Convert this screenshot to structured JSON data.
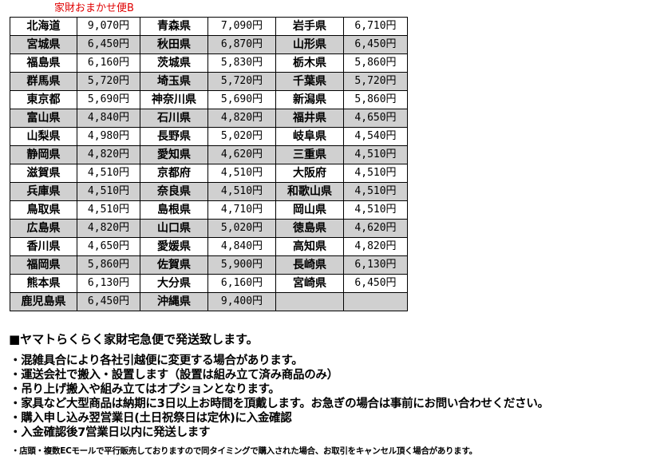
{
  "title": "家財おまかせ便B",
  "colors": {
    "title": "#e00000",
    "row_shade": "#d0d0d0"
  },
  "rows": [
    [
      [
        "北海道",
        "9,070円"
      ],
      [
        "青森県",
        "7,090円"
      ],
      [
        "岩手県",
        "6,710円"
      ]
    ],
    [
      [
        "宮城県",
        "6,450円"
      ],
      [
        "秋田県",
        "6,870円"
      ],
      [
        "山形県",
        "6,450円"
      ]
    ],
    [
      [
        "福島県",
        "6,160円"
      ],
      [
        "茨城県",
        "5,830円"
      ],
      [
        "栃木県",
        "5,860円"
      ]
    ],
    [
      [
        "群馬県",
        "5,720円"
      ],
      [
        "埼玉県",
        "5,720円"
      ],
      [
        "千葉県",
        "5,720円"
      ]
    ],
    [
      [
        "東京都",
        "5,690円"
      ],
      [
        "神奈川県",
        "5,690円"
      ],
      [
        "新潟県",
        "5,860円"
      ]
    ],
    [
      [
        "富山県",
        "4,840円"
      ],
      [
        "石川県",
        "4,820円"
      ],
      [
        "福井県",
        "4,650円"
      ]
    ],
    [
      [
        "山梨県",
        "4,980円"
      ],
      [
        "長野県",
        "5,020円"
      ],
      [
        "岐阜県",
        "4,540円"
      ]
    ],
    [
      [
        "静岡県",
        "4,820円"
      ],
      [
        "愛知県",
        "4,620円"
      ],
      [
        "三重県",
        "4,510円"
      ]
    ],
    [
      [
        "滋賀県",
        "4,510円"
      ],
      [
        "京都府",
        "4,510円"
      ],
      [
        "大阪府",
        "4,510円"
      ]
    ],
    [
      [
        "兵庫県",
        "4,510円"
      ],
      [
        "奈良県",
        "4,510円"
      ],
      [
        "和歌山県",
        "4,510円"
      ]
    ],
    [
      [
        "鳥取県",
        "4,510円"
      ],
      [
        "島根県",
        "4,710円"
      ],
      [
        "岡山県",
        "4,510円"
      ]
    ],
    [
      [
        "広島県",
        "4,820円"
      ],
      [
        "山口県",
        "5,020円"
      ],
      [
        "徳島県",
        "4,620円"
      ]
    ],
    [
      [
        "香川県",
        "4,650円"
      ],
      [
        "愛媛県",
        "4,840円"
      ],
      [
        "高知県",
        "4,820円"
      ]
    ],
    [
      [
        "福岡県",
        "5,860円"
      ],
      [
        "佐賀県",
        "5,900円"
      ],
      [
        "長崎県",
        "6,130円"
      ]
    ],
    [
      [
        "熊本県",
        "6,130円"
      ],
      [
        "大分県",
        "6,160円"
      ],
      [
        "宮崎県",
        "6,450円"
      ]
    ],
    [
      [
        "鹿児島県",
        "6,450円"
      ],
      [
        "沖縄県",
        "9,400円"
      ],
      [
        "",
        ""
      ]
    ]
  ],
  "heading": "■ヤマトらくらく家財宅急便で発送致します。",
  "notes": [
    "・混雑具合により各社引越便に変更する場合があります。",
    "・運送会社で搬入・設置します（設置は組み立て済み商品のみ）",
    "・吊り上げ搬入や組み立てはオプションとなります。",
    "・家具など大型商品は納期に3日以上お時間を頂戴します。お急ぎの場合は事前にお問い合わせください。",
    "・購入申し込み翌営業日(土日祝祭日は定休)に入金確認",
    "・入金確認後7営業日以内に発送します"
  ],
  "footnote": "・店頭・複数ECモールで平行販売しておりますので同タイミングで購入された場合、お取引をキャンセル頂く場合があります。"
}
